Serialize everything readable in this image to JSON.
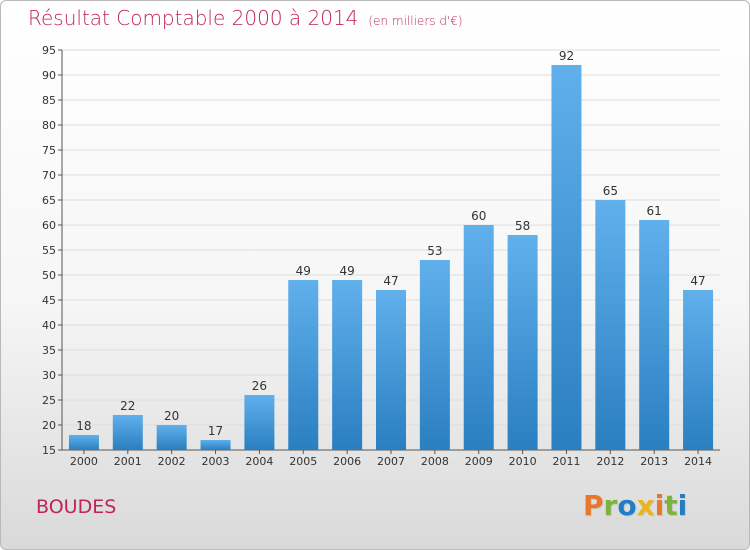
{
  "header": {
    "title": "Résultat Comptable 2000 à 2014",
    "subtitle": "(en milliers d'€)"
  },
  "footer": {
    "commune": "BOUDES",
    "logo_text": "Proxiti"
  },
  "colors": {
    "title": "#c0245a",
    "bar_top": "#60b0ec",
    "bar_bottom": "#2a7fc0",
    "grid": "#dddddd",
    "logo_letters": [
      "#e8772a",
      "#7cb33c",
      "#1f7ec4",
      "#e8b51e",
      "#e8772a",
      "#7cb33c",
      "#1f7ec4"
    ]
  },
  "chart_data": {
    "type": "bar",
    "title": "Résultat Comptable 2000 à 2014",
    "subtitle": "(en milliers d'€)",
    "xlabel": "",
    "ylabel": "",
    "categories": [
      "2000",
      "2001",
      "2002",
      "2003",
      "2004",
      "2005",
      "2006",
      "2007",
      "2008",
      "2009",
      "2010",
      "2011",
      "2012",
      "2013",
      "2014"
    ],
    "values": [
      18,
      22,
      20,
      17,
      26,
      49,
      49,
      47,
      53,
      60,
      58,
      92,
      65,
      61,
      47
    ],
    "ylim": [
      15,
      95
    ],
    "yticks": [
      15,
      20,
      25,
      30,
      35,
      40,
      45,
      50,
      55,
      60,
      65,
      70,
      75,
      80,
      85,
      90,
      95
    ],
    "grid": true,
    "data_labels": true
  }
}
